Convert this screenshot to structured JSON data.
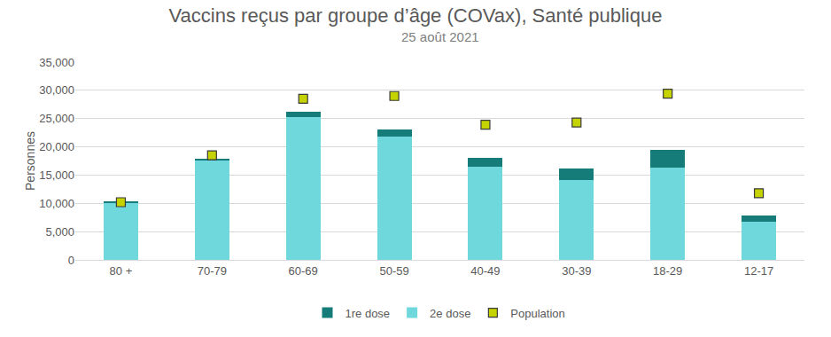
{
  "chart_data": {
    "type": "bar",
    "title": "Vaccins reçus par groupe d’âge (COVax), Santé publique",
    "subtitle": "25 août 2021",
    "y_label": "Personnes",
    "categories": [
      "80 +",
      "70-79",
      "60-69",
      "50-59",
      "40-49",
      "30-39",
      "18-29",
      "12-17"
    ],
    "stacked": true,
    "grid": true,
    "legend": "bottom",
    "ylim": [
      0,
      35000
    ],
    "yticks": [
      0,
      {
        "value": 5000,
        "label": "5,000"
      },
      {
        "value": 10000,
        "label": "10,000"
      },
      {
        "value": 15000,
        "label": "15,000"
      },
      {
        "value": 20000,
        "label": "20,000"
      },
      {
        "value": 25000,
        "label": "25,000"
      },
      {
        "value": 30000,
        "label": "30,000"
      },
      {
        "value": 35000,
        "label": "35,000"
      }
    ],
    "series": [
      {
        "name": "1re dose",
        "type": "bar",
        "color": "#167c7a",
        "values": [
          200,
          200,
          900,
          1300,
          1500,
          2000,
          3200,
          1100
        ]
      },
      {
        "name": "2e dose",
        "type": "bar",
        "color": "#6fd8dc",
        "values": [
          10100,
          17600,
          25300,
          21800,
          16500,
          14200,
          16300,
          6800
        ]
      },
      {
        "name": "Population",
        "type": "scatter",
        "marker": "square",
        "color": "#c5d400",
        "values": [
          10200,
          18500,
          28500,
          29000,
          23900,
          24300,
          29400,
          11800
        ]
      }
    ]
  }
}
